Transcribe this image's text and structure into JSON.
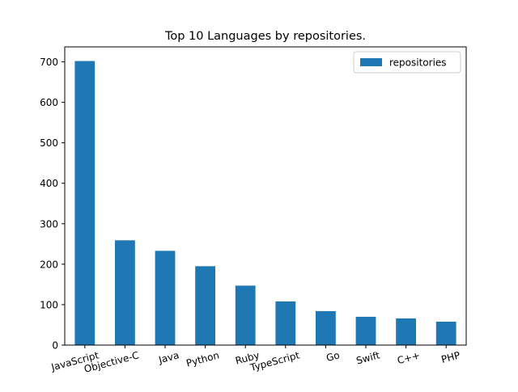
{
  "chart_data": {
    "type": "bar",
    "title": "Top 10 Languages by repositories.",
    "xlabel": "",
    "ylabel": "",
    "categories": [
      "JavaScript",
      "Objective-C",
      "Java",
      "Python",
      "Ruby",
      "TypeScript",
      "Go",
      "Swift",
      "C++",
      "PHP"
    ],
    "series": [
      {
        "name": "repositories",
        "color": "#1f77b4",
        "values": [
          702,
          259,
          233,
          195,
          147,
          108,
          84,
          70,
          66,
          58
        ]
      }
    ],
    "ylim": [
      0,
      737
    ],
    "yticks": [
      0,
      100,
      200,
      300,
      400,
      500,
      600,
      700
    ],
    "legend": {
      "position": "top-right"
    },
    "grid": false
  }
}
